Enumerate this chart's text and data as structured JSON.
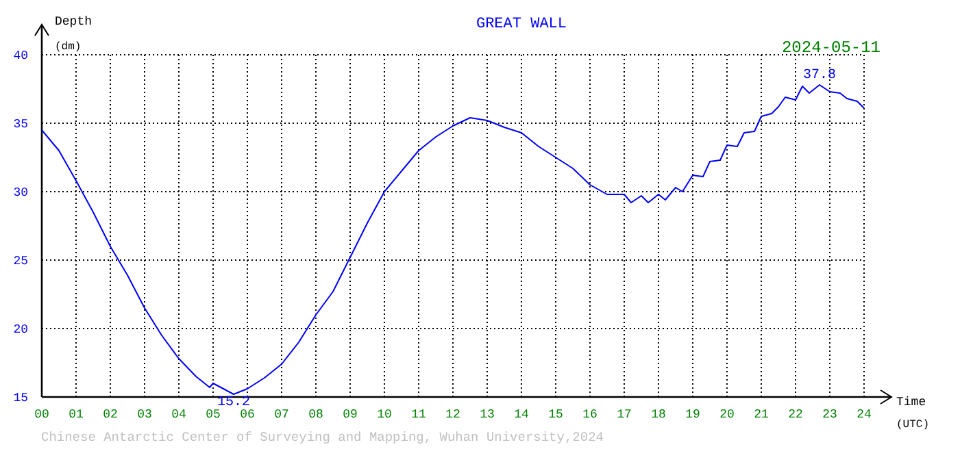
{
  "chart_data": {
    "type": "line",
    "title": "GREAT WALL",
    "xlabel": "Time (UTC)",
    "ylabel": "Depth (dm)",
    "x": [
      0,
      0.5,
      1,
      1.5,
      2,
      2.5,
      3,
      3.5,
      4,
      4.5,
      4.9,
      5,
      5.6,
      6,
      6.5,
      7,
      7.5,
      8,
      8.5,
      9,
      9.5,
      10,
      10.5,
      11,
      11.5,
      12,
      12.5,
      13,
      13.5,
      14,
      14.5,
      15,
      15.5,
      16,
      16.5,
      17,
      17.2,
      17.5,
      17.7,
      18,
      18.2,
      18.5,
      18.7,
      19,
      19.3,
      19.5,
      19.8,
      20,
      20.3,
      20.5,
      20.8,
      21,
      21.3,
      21.5,
      21.7,
      22,
      22.2,
      22.4,
      22.7,
      23,
      23.3,
      23.5,
      23.8,
      24
    ],
    "series": [
      {
        "color": "#0000ff",
        "values": [
          34.5,
          33.0,
          30.8,
          28.5,
          26.0,
          23.9,
          21.5,
          19.5,
          17.8,
          16.5,
          15.7,
          16.0,
          15.2,
          15.6,
          16.4,
          17.4,
          19.0,
          21.0,
          22.7,
          25.2,
          27.7,
          30.0,
          31.5,
          33.0,
          34.0,
          34.8,
          35.4,
          35.2,
          34.7,
          34.3,
          33.3,
          32.5,
          31.7,
          30.5,
          29.8,
          29.8,
          29.2,
          29.7,
          29.2,
          29.8,
          29.4,
          30.3,
          30.0,
          31.2,
          31.1,
          32.2,
          32.3,
          33.4,
          33.3,
          34.3,
          34.4,
          35.5,
          35.7,
          36.2,
          36.9,
          36.7,
          37.7,
          37.2,
          37.8,
          37.3,
          37.2,
          36.8,
          36.6,
          36.1
        ]
      }
    ],
    "xlim": [
      0,
      24
    ],
    "ylim": [
      15,
      40
    ],
    "xticks": [
      {
        "value": 0,
        "label": "00"
      },
      {
        "value": 1,
        "label": "01"
      },
      {
        "value": 2,
        "label": "02"
      },
      {
        "value": 3,
        "label": "03"
      },
      {
        "value": 4,
        "label": "04"
      },
      {
        "value": 5,
        "label": "05"
      },
      {
        "value": 6,
        "label": "06"
      },
      {
        "value": 7,
        "label": "07"
      },
      {
        "value": 8,
        "label": "08"
      },
      {
        "value": 9,
        "label": "09"
      },
      10,
      11,
      12,
      13,
      14,
      15,
      16,
      17,
      18,
      19,
      20,
      21,
      22,
      23,
      24
    ],
    "yticks": [
      15,
      20,
      25,
      30,
      35,
      40
    ],
    "grid": true,
    "annotations": [
      "2024-05-11",
      {
        "text": "37.8",
        "x": 22.7,
        "y": 37.8
      },
      {
        "text": "15.2",
        "x": 5.6,
        "y": 15.2
      },
      "Chinese Antarctic Center of Surveying and Mapping, Wuhan University,2024"
    ]
  }
}
